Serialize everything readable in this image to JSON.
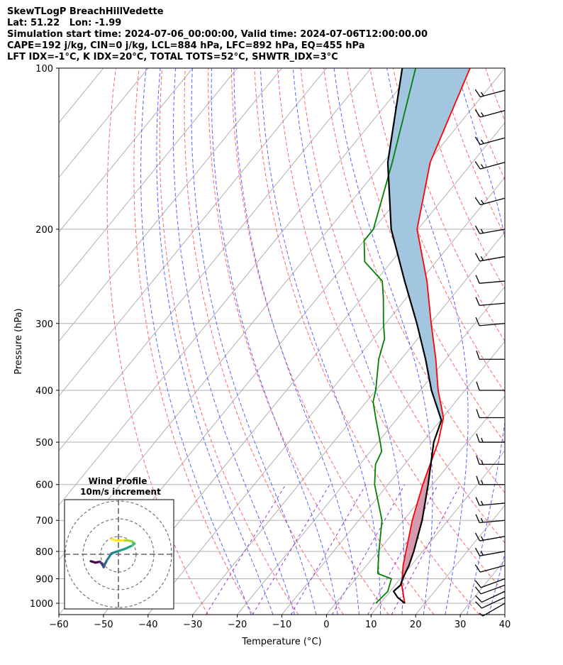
{
  "header": {
    "title": "SkewTLogP BreachHillVedette",
    "location": "Lat: 51.22   Lon: -1.99",
    "times": "Simulation start time: 2024-07-06_00:00:00, Valid time: 2024-07-06T12:00:00.00",
    "params": "CAPE=192 j/kg, CIN=0 j/kg, LCL=884 hPa, LFC=892 hPa, EQ=455 hPa",
    "indices": "LFT IDX=-1°C, K IDX=20°C, TOTAL TOTS=52°C, SHWTR_IDX=3°C"
  },
  "chart_data": {
    "type": "skewt",
    "xlabel": "Temperature (°C)",
    "ylabel": "Pressure (hPa)",
    "xlim": [
      -60,
      40
    ],
    "ylim_hpa": [
      1050,
      100
    ],
    "x_ticks": [
      -60,
      -50,
      -40,
      -30,
      -20,
      -10,
      0,
      10,
      20,
      30,
      40
    ],
    "x_tick_labels": [
      "−60",
      "−50",
      "−40",
      "−30",
      "−20",
      "−10",
      "0",
      "10",
      "20",
      "30",
      "40"
    ],
    "y_ticks": [
      100,
      200,
      300,
      400,
      500,
      600,
      700,
      800,
      900,
      1000
    ],
    "y_tick_labels": [
      "100",
      "200",
      "300",
      "400",
      "500",
      "600",
      "700",
      "800",
      "900",
      "1000"
    ],
    "series": [
      {
        "name": "temperature",
        "color": "#ff0000",
        "points": [
          [
            1000,
            15.5
          ],
          [
            925,
            11.5
          ],
          [
            850,
            8.2
          ],
          [
            700,
            2.0
          ],
          [
            600,
            -2.2
          ],
          [
            500,
            -6.5
          ],
          [
            450,
            -9.8
          ],
          [
            400,
            -16.0
          ],
          [
            350,
            -22.2
          ],
          [
            300,
            -29.8
          ],
          [
            250,
            -38.5
          ],
          [
            200,
            -50.2
          ],
          [
            150,
            -59.5
          ],
          [
            100,
            -67.8
          ]
        ]
      },
      {
        "name": "dewpoint",
        "color": "#008000",
        "points": [
          [
            1000,
            9.0
          ],
          [
            950,
            9.5
          ],
          [
            900,
            8.0
          ],
          [
            880,
            4.0
          ],
          [
            850,
            2.6
          ],
          [
            800,
            0.2
          ],
          [
            700,
            -4.8
          ],
          [
            600,
            -13.0
          ],
          [
            550,
            -16.5
          ],
          [
            520,
            -17.5
          ],
          [
            500,
            -19.5
          ],
          [
            450,
            -25.0
          ],
          [
            420,
            -28.5
          ],
          [
            400,
            -30.0
          ],
          [
            350,
            -35.0
          ],
          [
            320,
            -37.5
          ],
          [
            300,
            -40.5
          ],
          [
            270,
            -45.0
          ],
          [
            250,
            -48.5
          ],
          [
            230,
            -56.0
          ],
          [
            210,
            -60.0
          ],
          [
            200,
            -60.0
          ],
          [
            150,
            -68.0
          ],
          [
            100,
            -80.0
          ]
        ]
      },
      {
        "name": "parcel",
        "color": "#000000",
        "points": [
          [
            1000,
            15.5
          ],
          [
            975,
            12.8
          ],
          [
            950,
            10.8
          ],
          [
            925,
            11.2
          ],
          [
            900,
            10.5
          ],
          [
            850,
            9.5
          ],
          [
            800,
            8.0
          ],
          [
            700,
            4.2
          ],
          [
            600,
            -1.0
          ],
          [
            500,
            -7.5
          ],
          [
            455,
            -9.8
          ],
          [
            400,
            -17.5
          ],
          [
            350,
            -24.5
          ],
          [
            300,
            -33.0
          ],
          [
            250,
            -43.5
          ],
          [
            200,
            -56.0
          ],
          [
            150,
            -69.0
          ],
          [
            100,
            -83.0
          ]
        ]
      }
    ],
    "winds_kt": [
      [
        1000,
        240,
        8
      ],
      [
        975,
        245,
        10
      ],
      [
        950,
        245,
        10
      ],
      [
        925,
        250,
        12
      ],
      [
        900,
        250,
        13
      ],
      [
        850,
        255,
        14
      ],
      [
        800,
        260,
        15
      ],
      [
        750,
        260,
        16
      ],
      [
        700,
        265,
        16
      ],
      [
        650,
        265,
        16
      ],
      [
        600,
        270,
        16
      ],
      [
        550,
        270,
        15
      ],
      [
        500,
        270,
        15
      ],
      [
        450,
        270,
        14
      ],
      [
        400,
        270,
        14
      ],
      [
        350,
        270,
        14
      ],
      [
        300,
        265,
        14
      ],
      [
        275,
        265,
        14
      ],
      [
        250,
        265,
        14
      ],
      [
        225,
        260,
        15
      ],
      [
        200,
        260,
        15
      ],
      [
        175,
        255,
        16
      ],
      [
        150,
        255,
        16
      ],
      [
        135,
        255,
        16
      ],
      [
        120,
        255,
        16
      ],
      [
        110,
        255,
        16
      ]
    ],
    "hodograph": {
      "title": "Wind Profile",
      "subtitle": "10m/s increment",
      "points_ms": [
        [
          -6,
          -1.5
        ],
        [
          -5,
          -1.8
        ],
        [
          -4,
          -1.6
        ],
        [
          -3.5,
          -2.2
        ],
        [
          -3.2,
          -2.8
        ],
        [
          -3.0,
          -2.3
        ],
        [
          -2.5,
          -1.3
        ],
        [
          -1.5,
          0.2
        ],
        [
          0,
          0.7
        ],
        [
          1.5,
          1.2
        ],
        [
          3.0,
          1.9
        ],
        [
          3.5,
          2.3
        ],
        [
          3.0,
          2.8
        ],
        [
          2.0,
          3.0
        ],
        [
          1.0,
          3.0
        ],
        [
          -0.5,
          3.0
        ],
        [
          -1.5,
          3.3
        ]
      ]
    }
  }
}
